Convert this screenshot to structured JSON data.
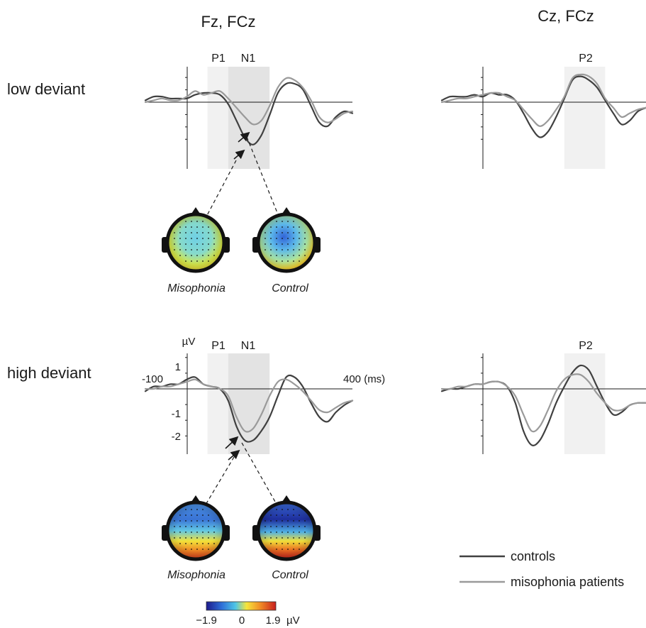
{
  "figure": {
    "column_titles": [
      "Fz, FCz",
      "Cz, FCz"
    ],
    "row_labels": [
      "low deviant",
      "high deviant"
    ],
    "y_unit": "µV",
    "x_unit": "(ms)",
    "x_tick_labels": [
      "-100",
      "400 (ms)"
    ],
    "y_tick_labels": [
      "1",
      "-1",
      "-2"
    ],
    "window_labels": {
      "p1": "P1",
      "n1": "N1",
      "p2": "P2"
    },
    "topomap_labels": [
      "Misophonia",
      "Control"
    ],
    "colorbar": {
      "min_label": "−1.9",
      "mid_label": "0",
      "max_label": "1.9",
      "unit": "µV",
      "colors": [
        "#1e1a8c",
        "#2e6fd8",
        "#4fc6e6",
        "#f7e53a",
        "#f08a25",
        "#c81e1e"
      ]
    },
    "legend": [
      {
        "label": "controls",
        "color": "#404040"
      },
      {
        "label": "misophonia patients",
        "color": "#9a9a9a"
      }
    ],
    "colors": {
      "controls": "#404040",
      "patients": "#9a9a9a",
      "n1_window": "#e3e3e3",
      "p_window": "#f1f1f1"
    }
  },
  "chart_data": [
    {
      "type": "line",
      "panel": "low deviant, Fz/FCz",
      "x_range": [
        -100,
        400
      ],
      "y_range": [
        -2.5,
        1.5
      ],
      "windows": [
        {
          "label": "P1",
          "x": [
            50,
            100
          ]
        },
        {
          "label": "N1",
          "x": [
            100,
            200
          ]
        }
      ],
      "series": [
        {
          "name": "controls",
          "x": [
            -100,
            -80,
            -60,
            -40,
            -20,
            0,
            20,
            40,
            60,
            80,
            100,
            120,
            140,
            160,
            180,
            200,
            220,
            240,
            260,
            280,
            300,
            320,
            340,
            360,
            380,
            400
          ],
          "y": [
            0.1,
            0.3,
            0.3,
            0.2,
            0.2,
            0.2,
            0.4,
            0.5,
            0.5,
            0.4,
            -0.1,
            -1.0,
            -1.9,
            -2.3,
            -1.8,
            -0.7,
            0.5,
            1.0,
            1.0,
            0.7,
            -0.2,
            -1.1,
            -1.3,
            -0.8,
            -0.5,
            -0.6
          ]
        },
        {
          "name": "misophonia patients",
          "x": [
            -100,
            -80,
            -60,
            -40,
            -20,
            0,
            20,
            40,
            60,
            80,
            100,
            120,
            140,
            160,
            180,
            200,
            220,
            240,
            260,
            280,
            300,
            320,
            340,
            360,
            380,
            400
          ],
          "y": [
            0.0,
            0.1,
            0.2,
            0.1,
            0.1,
            0.3,
            0.6,
            0.4,
            0.5,
            0.6,
            0.2,
            -0.3,
            -0.8,
            -1.2,
            -1.0,
            -0.2,
            0.8,
            1.3,
            1.2,
            0.8,
            0.1,
            -0.8,
            -1.1,
            -0.9,
            -0.6,
            -0.5
          ]
        }
      ]
    },
    {
      "type": "line",
      "panel": "low deviant, Cz/FCz",
      "x_range": [
        -100,
        400
      ],
      "y_range": [
        -2.5,
        1.5
      ],
      "windows": [
        {
          "label": "P2",
          "x": [
            200,
            300
          ]
        }
      ],
      "series": [
        {
          "name": "controls",
          "x": [
            -100,
            -80,
            -60,
            -40,
            -20,
            0,
            20,
            40,
            60,
            80,
            100,
            120,
            140,
            160,
            180,
            200,
            220,
            240,
            260,
            280,
            300,
            320,
            340,
            360,
            380,
            400
          ],
          "y": [
            0.1,
            0.3,
            0.3,
            0.3,
            0.4,
            0.3,
            0.5,
            0.4,
            0.4,
            0.1,
            -0.6,
            -1.4,
            -1.9,
            -1.6,
            -0.8,
            0.2,
            1.2,
            1.4,
            1.2,
            0.8,
            0.1,
            -0.6,
            -1.2,
            -1.0,
            -0.5,
            -0.3
          ]
        },
        {
          "name": "misophonia patients",
          "x": [
            -100,
            -80,
            -60,
            -40,
            -20,
            0,
            20,
            40,
            60,
            80,
            100,
            120,
            140,
            160,
            180,
            200,
            220,
            240,
            260,
            280,
            300,
            320,
            340,
            360,
            380,
            400
          ],
          "y": [
            0.0,
            0.1,
            0.2,
            0.2,
            0.3,
            0.4,
            0.5,
            0.5,
            0.3,
            0.1,
            -0.4,
            -0.9,
            -1.3,
            -1.0,
            -0.4,
            0.3,
            1.3,
            1.5,
            1.4,
            1.0,
            0.2,
            -0.3,
            -0.8,
            -0.6,
            -0.4,
            -0.3
          ]
        }
      ]
    },
    {
      "type": "line",
      "panel": "high deviant, Fz/FCz",
      "x_range": [
        -100,
        400
      ],
      "y_range": [
        -2.5,
        1.5
      ],
      "windows": [
        {
          "label": "P1",
          "x": [
            50,
            100
          ]
        },
        {
          "label": "N1",
          "x": [
            100,
            200
          ]
        }
      ],
      "series": [
        {
          "name": "controls",
          "x": [
            -100,
            -80,
            -60,
            -40,
            -20,
            0,
            20,
            40,
            60,
            80,
            100,
            120,
            140,
            160,
            180,
            200,
            220,
            240,
            260,
            280,
            300,
            320,
            340,
            360,
            380,
            400
          ],
          "y": [
            -0.1,
            0.1,
            0.1,
            0.2,
            0.2,
            0.4,
            0.5,
            0.2,
            0.1,
            0.0,
            -0.5,
            -1.6,
            -2.2,
            -2.2,
            -1.8,
            -1.2,
            -0.3,
            0.5,
            0.5,
            0.1,
            -0.6,
            -1.2,
            -1.4,
            -1.0,
            -0.7,
            -0.5
          ]
        },
        {
          "name": "misophonia patients",
          "x": [
            -100,
            -80,
            -60,
            -40,
            -20,
            0,
            20,
            40,
            60,
            80,
            100,
            120,
            140,
            160,
            180,
            200,
            220,
            240,
            260,
            280,
            300,
            320,
            340,
            360,
            380,
            400
          ],
          "y": [
            0.0,
            0.0,
            0.1,
            0.1,
            0.2,
            0.3,
            0.4,
            0.2,
            0.1,
            0.0,
            -0.3,
            -1.2,
            -1.8,
            -1.7,
            -1.1,
            -0.3,
            0.3,
            0.4,
            0.2,
            -0.1,
            -0.5,
            -0.9,
            -1.0,
            -0.8,
            -0.6,
            -0.5
          ]
        }
      ]
    },
    {
      "type": "line",
      "panel": "high deviant, Cz/FCz",
      "x_range": [
        -100,
        400
      ],
      "y_range": [
        -2.5,
        1.5
      ],
      "windows": [
        {
          "label": "P2",
          "x": [
            200,
            300
          ]
        }
      ],
      "series": [
        {
          "name": "controls",
          "x": [
            -100,
            -80,
            -60,
            -40,
            -20,
            0,
            20,
            40,
            60,
            80,
            100,
            120,
            140,
            160,
            180,
            200,
            220,
            240,
            260,
            280,
            300,
            320,
            340,
            360,
            380,
            400
          ],
          "y": [
            -0.1,
            0.0,
            0.0,
            0.1,
            0.2,
            0.2,
            0.3,
            0.3,
            0.1,
            -0.6,
            -1.8,
            -2.4,
            -2.2,
            -1.5,
            -0.6,
            0.1,
            0.7,
            1.0,
            0.8,
            0.1,
            -0.6,
            -1.1,
            -1.0,
            -0.7,
            -0.6,
            -0.6
          ]
        },
        {
          "name": "misophonia patients",
          "x": [
            -100,
            -80,
            -60,
            -40,
            -20,
            0,
            20,
            40,
            60,
            80,
            100,
            120,
            140,
            160,
            180,
            200,
            220,
            240,
            260,
            280,
            300,
            320,
            340,
            360,
            380,
            400
          ],
          "y": [
            0.0,
            0.0,
            0.1,
            0.1,
            0.2,
            0.2,
            0.3,
            0.3,
            0.1,
            -0.3,
            -1.1,
            -1.8,
            -1.6,
            -0.9,
            -0.1,
            0.4,
            0.6,
            0.6,
            0.3,
            -0.2,
            -0.6,
            -0.9,
            -0.9,
            -0.7,
            -0.6,
            -0.6
          ]
        }
      ]
    }
  ]
}
